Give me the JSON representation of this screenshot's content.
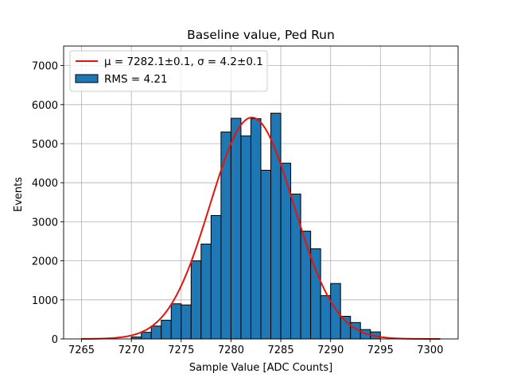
{
  "chart_data": {
    "type": "bar",
    "title": "Baseline value, Ped Run",
    "xlabel": "Sample Value [ADC Counts]",
    "ylabel": "Events",
    "xlim": [
      7263.2,
      7302.8
    ],
    "ylim": [
      0,
      7500
    ],
    "xticks": [
      7265,
      7270,
      7275,
      7280,
      7285,
      7290,
      7295,
      7300
    ],
    "yticks": [
      0,
      1000,
      2000,
      3000,
      4000,
      5000,
      6000,
      7000
    ],
    "grid": true,
    "legend_position": "top-left",
    "bin_width": 1,
    "bin_edges_start": 7270,
    "histogram_values": [
      50,
      170,
      330,
      480,
      900,
      870,
      2000,
      2430,
      3160,
      5300,
      5650,
      5200,
      5640,
      4320,
      5780,
      4500,
      3710,
      2760,
      2310,
      1110,
      1420,
      580,
      420,
      240,
      180
    ],
    "fit": {
      "type": "gaussian",
      "mu": 7282.1,
      "sigma": 4.2,
      "amplitude": 5670,
      "x_range": [
        7265,
        7301
      ],
      "legend": "μ = 7282.1±0.1, σ = 4.2±0.1"
    },
    "series": [
      {
        "name": "RMS = 4.21",
        "kind": "histogram",
        "color": "#1f77b4",
        "edgecolor": "#000000"
      },
      {
        "name": "μ = 7282.1±0.1, σ = 4.2±0.1",
        "kind": "line",
        "color": "#e8120c"
      }
    ]
  }
}
